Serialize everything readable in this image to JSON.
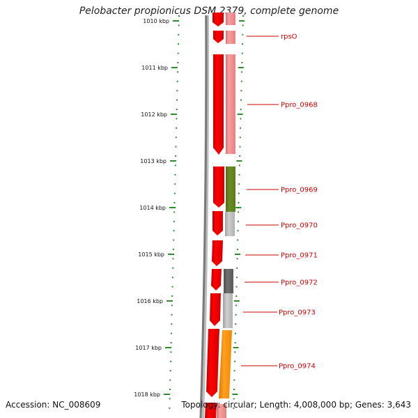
{
  "title": "Pelobacter propionicus DSM 2379, complete genome",
  "footer": {
    "accession": "Accession: NC_008609",
    "summary": "Topology: circular; Length: 4,008,000 bp; Genes: 3,643"
  },
  "scale_labels": [
    "1010 kbp",
    "1011 kbp",
    "1012 kbp",
    "1013 kbp",
    "1014 kbp",
    "1015 kbp",
    "1016 kbp",
    "1017 kbp",
    "1018 kbp"
  ],
  "gene_labels": [
    "rpsO",
    "Ppro_0968",
    "Ppro_0969",
    "Ppro_0970",
    "Ppro_0971",
    "Ppro_0972",
    "Ppro_0973",
    "Ppro_0974"
  ],
  "colors": {
    "cds": "#ff0000",
    "cds_light": "#f08080",
    "backbone": "#808080",
    "ticks": "#2e8b2e",
    "cog_green": "#6b8e23",
    "cog_gray_light": "#b4b4b4",
    "cog_gray_dark": "#606060",
    "cog_orange": "#ff8c00",
    "label": "#cc0000"
  }
}
